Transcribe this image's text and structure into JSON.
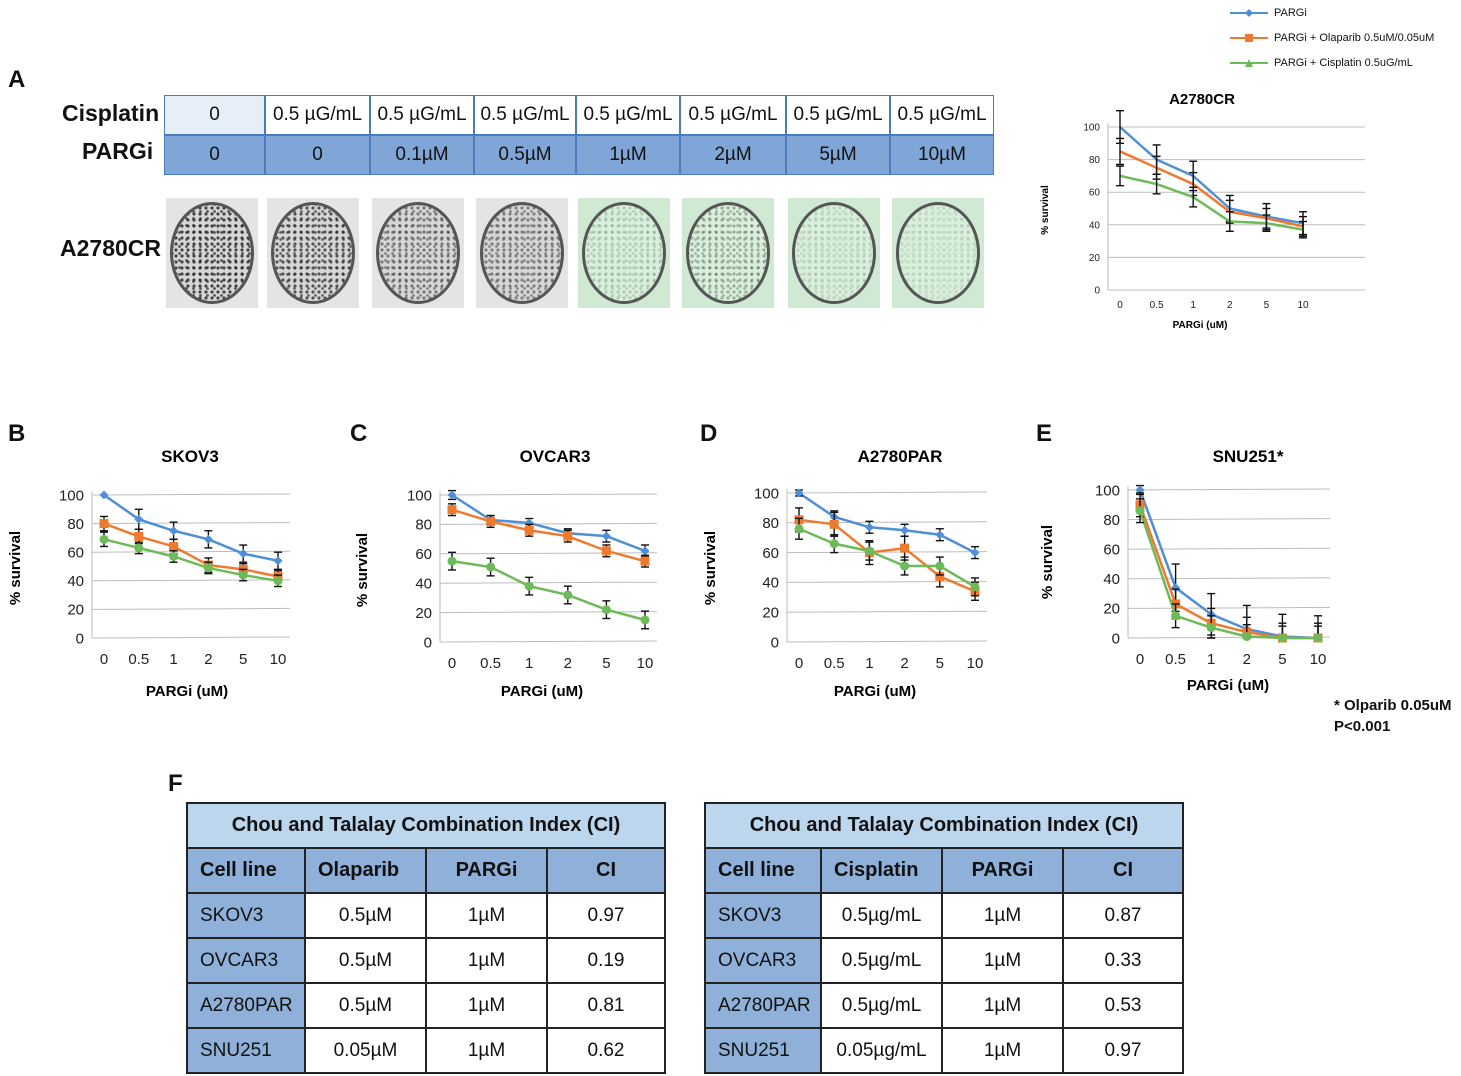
{
  "panels": {
    "A": "A",
    "B": "B",
    "C": "C",
    "D": "D",
    "E": "E",
    "F": "F"
  },
  "panel_a": {
    "row_cisplatin": "Cisplatin",
    "row_pargi": "PARGi",
    "row_cell": "A2780CR",
    "cisplatin": [
      "0",
      "0.5 µG/mL",
      "0.5 µG/mL",
      "0.5 µG/mL",
      "0.5 µG/mL",
      "0.5 µG/mL",
      "0.5 µG/mL",
      "0.5 µG/mL"
    ],
    "pargi": [
      "0",
      "0",
      "0.1µM",
      "0.5µM",
      "1µM",
      "2µM",
      "5µM",
      "10µM"
    ]
  },
  "legend": {
    "s1": "PARGi",
    "s2": "PARGi + Olaparib 0.5uM/0.05uM",
    "s3": "PARGi + Cisplatin 0.5uG/mL"
  },
  "colors": {
    "blue": "#4f8fd6",
    "orange": "#ef7a2f",
    "green": "#6dbb58"
  },
  "chart_data": [
    {
      "id": "A2780CR",
      "type": "line",
      "title": "A2780CR",
      "xlabel": "PARGi (uM)",
      "ylabel": "% survival",
      "categories": [
        "0",
        "0.5",
        "1",
        "2",
        "5",
        "10"
      ],
      "ylim": [
        0,
        100
      ],
      "yticks": [
        0,
        20,
        40,
        60,
        80,
        100
      ],
      "series": [
        {
          "name": "PARGi",
          "values": [
            100,
            80,
            70,
            50,
            45,
            41
          ],
          "err": [
            10,
            9,
            9,
            8,
            8,
            7
          ]
        },
        {
          "name": "PARGi + Olaparib 0.5uM/0.05uM",
          "values": [
            85,
            75,
            65,
            48,
            44,
            39
          ],
          "err": [
            8,
            7,
            7,
            7,
            6,
            6
          ]
        },
        {
          "name": "PARGi + Cisplatin 0.5uG/mL",
          "values": [
            70,
            65,
            57,
            42,
            41,
            37
          ],
          "err": [
            6,
            6,
            6,
            6,
            5,
            5
          ]
        }
      ]
    },
    {
      "id": "SKOV3",
      "type": "line",
      "title": "SKOV3",
      "xlabel": "PARGi (uM)",
      "ylabel": "% survival",
      "categories": [
        "0",
        "0.5",
        "1",
        "2",
        "5",
        "10"
      ],
      "ylim": [
        0,
        100
      ],
      "yticks": [
        0,
        20,
        40,
        60,
        80,
        100
      ],
      "series": [
        {
          "name": "PARGi",
          "values": [
            100,
            83,
            75,
            69,
            59,
            54
          ],
          "err": [
            0,
            7,
            6,
            6,
            6,
            6
          ]
        },
        {
          "name": "PARGi + Olaparib",
          "values": [
            80,
            71,
            64,
            51,
            48,
            43
          ],
          "err": [
            5,
            5,
            5,
            5,
            4,
            4
          ]
        },
        {
          "name": "PARGi + Cisplatin",
          "values": [
            69,
            63,
            57,
            49,
            44,
            40
          ],
          "err": [
            5,
            4,
            4,
            4,
            4,
            4
          ]
        }
      ]
    },
    {
      "id": "OVCAR3",
      "type": "line",
      "title": "OVCAR3",
      "xlabel": "PARGi (uM)",
      "ylabel": "% survival",
      "categories": [
        "0",
        "0.5",
        "1",
        "2",
        "5",
        "10"
      ],
      "ylim": [
        0,
        100
      ],
      "yticks": [
        0,
        20,
        40,
        60,
        80,
        100
      ],
      "series": [
        {
          "name": "PARGi",
          "values": [
            100,
            83,
            81,
            74,
            72,
            62
          ],
          "err": [
            3,
            3,
            3,
            3,
            4,
            4
          ]
        },
        {
          "name": "PARGi + Olaparib",
          "values": [
            90,
            82,
            76,
            72,
            62,
            55
          ],
          "err": [
            4,
            4,
            4,
            4,
            4,
            4
          ]
        },
        {
          "name": "PARGi + Cisplatin",
          "values": [
            55,
            51,
            38,
            32,
            22,
            15
          ],
          "err": [
            6,
            6,
            6,
            6,
            6,
            6
          ]
        }
      ]
    },
    {
      "id": "A2780PAR",
      "type": "line",
      "title": "A2780PAR",
      "xlabel": "PARGi (uM)",
      "ylabel": "% survival",
      "categories": [
        "0",
        "0.5",
        "1",
        "2",
        "5",
        "10"
      ],
      "ylim": [
        0,
        100
      ],
      "yticks": [
        0,
        20,
        40,
        60,
        80,
        100
      ],
      "series": [
        {
          "name": "PARGi",
          "values": [
            100,
            84,
            77,
            75,
            72,
            60
          ],
          "err": [
            2,
            4,
            4,
            4,
            4,
            4
          ]
        },
        {
          "name": "PARGi + Olaparib",
          "values": [
            82,
            79,
            60,
            63,
            44,
            34
          ],
          "err": [
            8,
            8,
            8,
            8,
            7,
            6
          ]
        },
        {
          "name": "PARGi + Cisplatin",
          "values": [
            76,
            66,
            61,
            51,
            51,
            37
          ],
          "err": [
            7,
            6,
            6,
            6,
            6,
            6
          ]
        }
      ]
    },
    {
      "id": "SNU251",
      "type": "line",
      "title": "SNU251*",
      "xlabel": "PARGi (uM)",
      "ylabel": "% survival",
      "categories": [
        "0",
        "0.5",
        "1",
        "2",
        "5",
        "10"
      ],
      "ylim": [
        0,
        100
      ],
      "yticks": [
        0,
        20,
        40,
        60,
        80,
        100
      ],
      "series": [
        {
          "name": "PARGi",
          "values": [
            100,
            34,
            16,
            6,
            1,
            0
          ],
          "err": [
            3,
            16,
            14,
            16,
            15,
            15
          ]
        },
        {
          "name": "PARGi + Olaparib",
          "values": [
            90,
            23,
            10,
            4,
            0,
            0
          ],
          "err": [
            8,
            10,
            10,
            10,
            10,
            10
          ]
        },
        {
          "name": "PARGi + Cisplatin",
          "values": [
            86,
            15,
            7,
            1,
            0,
            0
          ],
          "err": [
            8,
            8,
            8,
            8,
            8,
            8
          ]
        }
      ]
    }
  ],
  "notes": {
    "line1": "* Olparib 0.05uM",
    "line2": "P<0.001"
  },
  "ci_table_1": {
    "title": "Chou and Talalay Combination Index (CI)",
    "headers": [
      "Cell line",
      "Olaparib",
      "PARGi",
      "CI"
    ],
    "rows": [
      [
        "SKOV3",
        "0.5µM",
        "1µM",
        "0.97"
      ],
      [
        "OVCAR3",
        "0.5µM",
        "1µM",
        "0.19"
      ],
      [
        "A2780PAR",
        "0.5µM",
        "1µM",
        "0.81"
      ],
      [
        "SNU251",
        "0.05µM",
        "1µM",
        "0.62"
      ]
    ]
  },
  "ci_table_2": {
    "title": "Chou and Talalay Combination Index (CI)",
    "headers": [
      "Cell line",
      "Cisplatin",
      "PARGi",
      "CI"
    ],
    "rows": [
      [
        "SKOV3",
        "0.5µg/mL",
        "1µM",
        "0.87"
      ],
      [
        "OVCAR3",
        "0.5µg/mL",
        "1µM",
        "0.33"
      ],
      [
        "A2780PAR",
        "0.5µg/mL",
        "1µM",
        "0.53"
      ],
      [
        "SNU251",
        "0.05µg/mL",
        "1µM",
        "0.97"
      ]
    ]
  }
}
